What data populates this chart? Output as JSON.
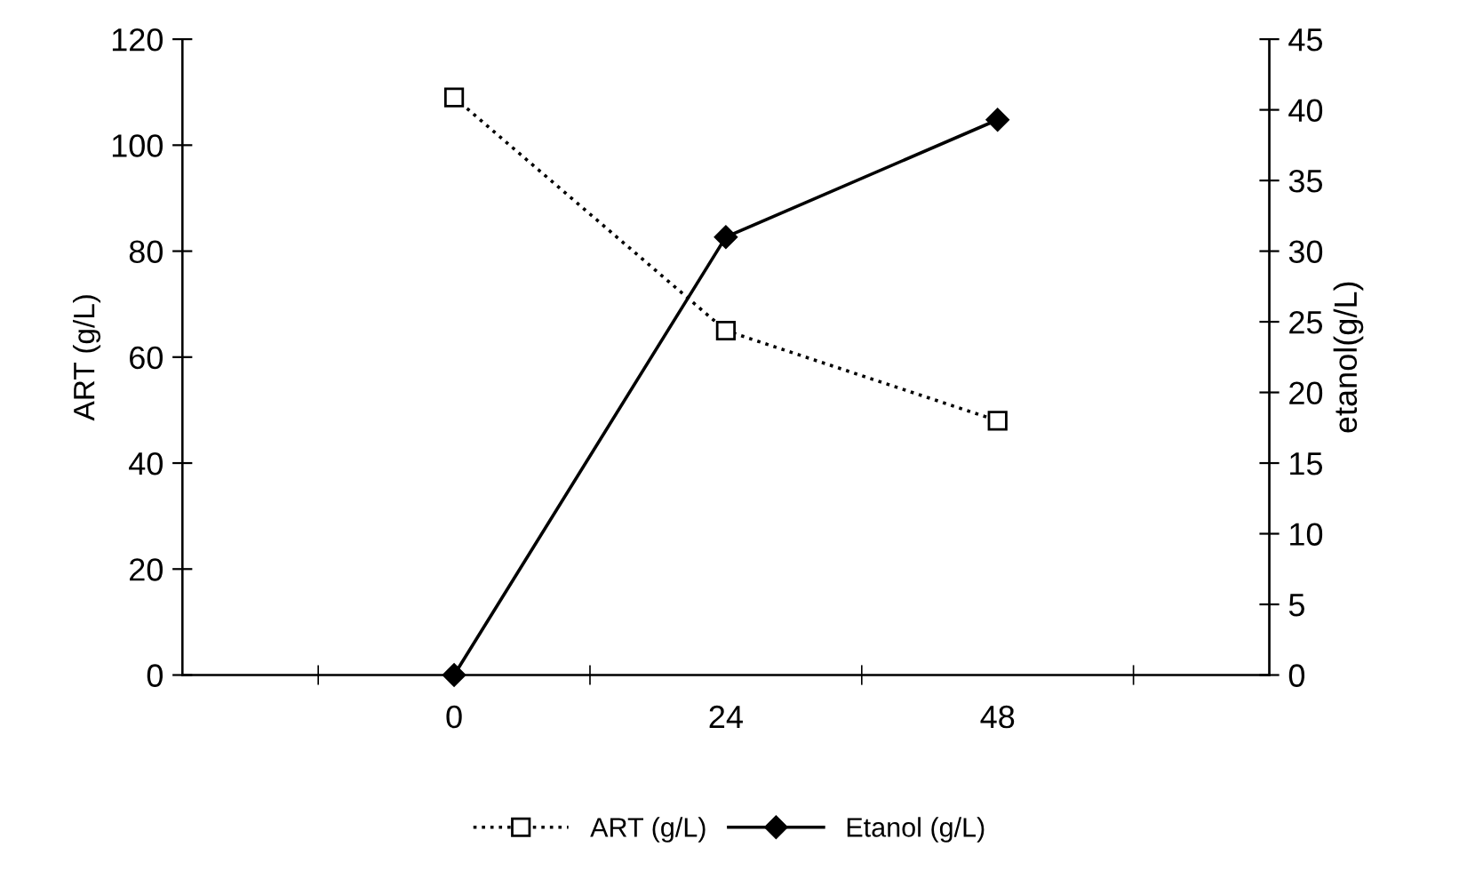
{
  "chart_data": {
    "type": "line",
    "categories": [
      "0",
      "24",
      "48"
    ],
    "ylabel": "ART (g/L)",
    "y2label": "etanol(g/L)",
    "ylim": [
      0,
      120
    ],
    "yticks": [
      0,
      20,
      40,
      60,
      80,
      100,
      120
    ],
    "y2lim": [
      0,
      45
    ],
    "y2ticks": [
      0,
      5,
      10,
      15,
      20,
      25,
      30,
      35,
      40,
      45
    ],
    "legend": "bottom",
    "grid": false,
    "series": [
      {
        "name": "ART (g/L)",
        "color": "#000000",
        "values": [
          109,
          65,
          48
        ],
        "marker": "square",
        "line_style": "dotted"
      },
      {
        "name": "Etanol (g/L)",
        "color": "#000000",
        "values": [
          0,
          31,
          39.3
        ],
        "axis": "y2",
        "marker": "diamond",
        "line_style": "solid"
      }
    ]
  }
}
